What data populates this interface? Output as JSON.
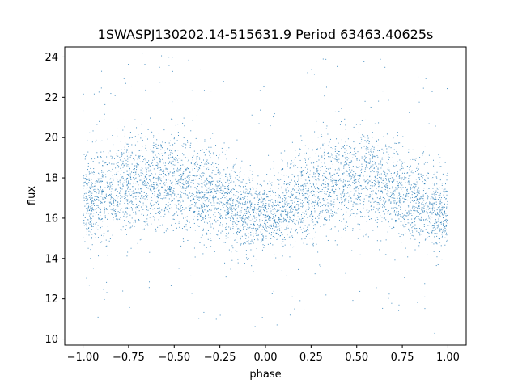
{
  "chart_data": {
    "type": "scatter",
    "title": "1SWASPJ130202.14-515631.9 Period 63463.40625s",
    "xlabel": "phase",
    "ylabel": "flux",
    "xlim": [
      -1.1,
      1.1
    ],
    "ylim": [
      9.7,
      24.5
    ],
    "grid": false,
    "legend": "none",
    "marker_color": "#1f77b4",
    "x_ticks": [
      -1.0,
      -0.75,
      -0.5,
      -0.25,
      0.0,
      0.25,
      0.5,
      0.75,
      1.0
    ],
    "x_tick_labels": [
      "−1.00",
      "−0.75",
      "−0.50",
      "−0.25",
      "0.00",
      "0.25",
      "0.50",
      "0.75",
      "1.00"
    ],
    "y_ticks": [
      10,
      12,
      14,
      16,
      18,
      20,
      22,
      24
    ],
    "y_tick_labels": [
      "10",
      "12",
      "14",
      "16",
      "18",
      "20",
      "22",
      "24"
    ],
    "envelope": {
      "phase": [
        -1.0,
        -0.9,
        -0.8,
        -0.7,
        -0.6,
        -0.5,
        -0.4,
        -0.3,
        -0.2,
        -0.1,
        0.0,
        0.1,
        0.2,
        0.3,
        0.4,
        0.5,
        0.6,
        0.7,
        0.8,
        0.9,
        1.0
      ],
      "median_flux": [
        16.7,
        17.1,
        17.5,
        17.7,
        17.8,
        17.8,
        17.6,
        17.2,
        16.7,
        16.2,
        16.0,
        16.4,
        17.0,
        17.5,
        17.7,
        17.8,
        17.7,
        17.4,
        17.0,
        16.6,
        16.2
      ],
      "upper_flux": [
        19.0,
        19.6,
        20.0,
        20.2,
        20.3,
        20.2,
        20.0,
        19.6,
        18.9,
        18.2,
        17.8,
        18.5,
        19.4,
        20.0,
        20.3,
        20.3,
        20.1,
        19.7,
        19.2,
        18.6,
        18.2
      ],
      "lower_flux": [
        14.5,
        14.8,
        15.2,
        15.4,
        15.5,
        15.5,
        15.3,
        15.0,
        14.7,
        14.4,
        14.2,
        14.5,
        14.9,
        15.2,
        15.4,
        15.5,
        15.4,
        15.2,
        14.9,
        14.6,
        14.3
      ]
    }
  }
}
